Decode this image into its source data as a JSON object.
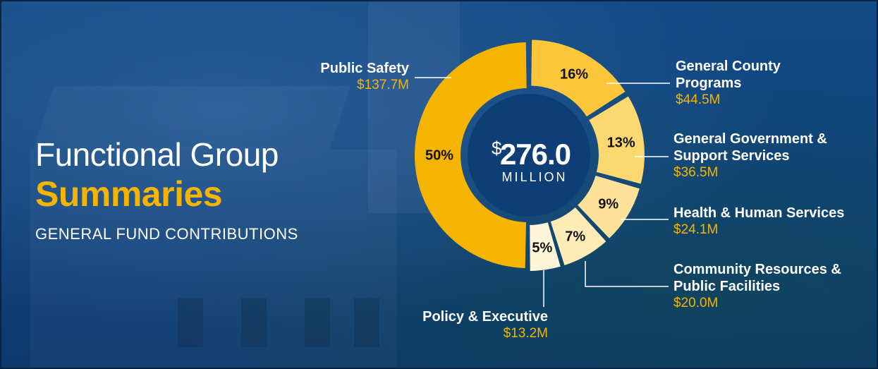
{
  "heading": {
    "title_line1": "Functional Group",
    "title_line2": "Summaries",
    "subtitle": "GENERAL FUND CONTRIBUTIONS"
  },
  "center": {
    "currency": "$",
    "amount": "276.0",
    "unit": "MILLION"
  },
  "colors": {
    "background": "#0d3f76",
    "accent": "#f5b400"
  },
  "chart_data": {
    "type": "pie",
    "title": "Functional Group Summaries",
    "subtitle": "GENERAL FUND CONTRIBUTIONS",
    "total": "$276.0 MILLION",
    "legend": "labels around the donut",
    "slices": [
      {
        "name": "General County Programs",
        "name_lines": [
          "General County",
          "Programs"
        ],
        "value_label": "$44.5M",
        "value": 44.5,
        "pct": 16,
        "pct_label": "16%",
        "color": "#fcc63a"
      },
      {
        "name": "General Government & Support Services",
        "name_lines": [
          "General Government &",
          "Support Services"
        ],
        "value_label": "$36.5M",
        "value": 36.5,
        "pct": 13,
        "pct_label": "13%",
        "color": "#fdd770"
      },
      {
        "name": "Health & Human Services",
        "name_lines": [
          "Health & Human Services"
        ],
        "value_label": "$24.1M",
        "value": 24.1,
        "pct": 9,
        "pct_label": "9%",
        "color": "#fee29a"
      },
      {
        "name": "Community Resources & Public Facilities",
        "name_lines": [
          "Community Resources &",
          "Public Facilities"
        ],
        "value_label": "$20.0M",
        "value": 20.0,
        "pct": 7,
        "pct_label": "7%",
        "color": "#feebb6"
      },
      {
        "name": "Policy & Executive",
        "name_lines": [
          "Policy & Executive"
        ],
        "value_label": "$13.2M",
        "value": 13.2,
        "pct": 5,
        "pct_label": "5%",
        "color": "#fff5d8"
      },
      {
        "name": "Public Safety",
        "name_lines": [
          "Public Safety"
        ],
        "value_label": "$137.7M",
        "value": 137.7,
        "pct": 50,
        "pct_label": "50%",
        "color": "#f5b400"
      }
    ]
  }
}
